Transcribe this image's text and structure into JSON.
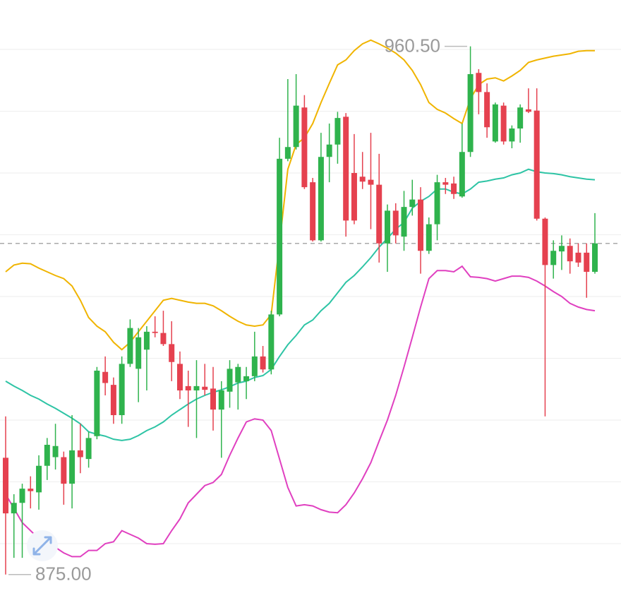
{
  "chart_data": {
    "type": "candlestick",
    "ylim": [
      871.2,
      968
    ],
    "ygrid": [
      880,
      890,
      900,
      910,
      920,
      930,
      940,
      950,
      960
    ],
    "up_color": "#2fb34d",
    "down_color": "#e5414f",
    "open": [
      893.9,
      884.9,
      886.6,
      888.9,
      888.3,
      892.6,
      894.0,
      894.0,
      889.7,
      895.1,
      893.7,
      897.4,
      907.8,
      905.7,
      900.8,
      909.1,
      908.3,
      911.4,
      914.3,
      914.1,
      912.3,
      909.1,
      905.5,
      904.8,
      905.4,
      905.1,
      901.7,
      904.6,
      906.1,
      906.3,
      907.1,
      910.3,
      908.2,
      917.1,
      942.3,
      944.2,
      950.6,
      938.5,
      929.1,
      942.6,
      944.6,
      949.1,
      940.0,
      939.4,
      938.9,
      938.1,
      928.6,
      933.9,
      929.7,
      934.5,
      935.7,
      927.4,
      931.7,
      938.5,
      938.3,
      936.2,
      943.4,
      956.2,
      953.1,
      945.1,
      950.9,
      945.1,
      947.2,
      950.3,
      950.1,
      932.6,
      925.1,
      927.3,
      928.2,
      927.1,
      927.1,
      924.0
    ],
    "high": [
      900.6,
      888.0,
      889.7,
      890.9,
      894.3,
      897.1,
      899.4,
      894.9,
      900.8,
      899.4,
      898.1,
      908.6,
      910.3,
      906.9,
      910.3,
      916.3,
      914.9,
      915.2,
      916.8,
      917.7,
      916.0,
      911.1,
      908.0,
      909.7,
      909.1,
      908.6,
      906.3,
      909.7,
      909.1,
      908.6,
      914.3,
      912.0,
      917.7,
      945.7,
      955.2,
      956.0,
      952.6,
      939.2,
      946.5,
      948.0,
      949.9,
      949.7,
      946.3,
      943.4,
      946.5,
      943.1,
      934.9,
      935.1,
      937.1,
      938.9,
      937.7,
      932.8,
      939.7,
      939.2,
      939.4,
      948.0,
      960.5,
      956.8,
      954.5,
      951.4,
      951.4,
      947.7,
      951.1,
      953.7,
      953.7,
      932.8,
      929.1,
      929.9,
      929.4,
      928.6,
      928.6,
      933.5
    ],
    "low": [
      875.0,
      877.7,
      877.7,
      885.7,
      885.5,
      890.3,
      892.0,
      886.3,
      885.7,
      891.4,
      892.3,
      896.9,
      904.0,
      899.4,
      899.4,
      908.6,
      902.9,
      904.8,
      913.4,
      912.0,
      906.3,
      903.4,
      898.9,
      897.1,
      904.0,
      898.3,
      893.9,
      902.0,
      901.7,
      903.4,
      906.3,
      907.7,
      907.4,
      916.8,
      941.9,
      943.8,
      937.4,
      928.9,
      928.9,
      938.5,
      941.5,
      929.7,
      931.7,
      937.4,
      930.9,
      925.5,
      924.0,
      928.6,
      927.4,
      933.1,
      923.7,
      926.9,
      929.1,
      936.6,
      935.8,
      936.0,
      942.6,
      949.5,
      945.7,
      944.9,
      944.6,
      944.0,
      944.9,
      949.7,
      932.3,
      900.6,
      922.9,
      924.3,
      923.7,
      924.8,
      919.8,
      923.7
    ],
    "close": [
      884.9,
      886.6,
      888.9,
      888.5,
      892.6,
      896.0,
      895.8,
      889.7,
      895.1,
      894.0,
      897.1,
      908.0,
      906.0,
      900.8,
      909.1,
      914.9,
      913.4,
      914.3,
      914.1,
      912.3,
      909.4,
      904.8,
      904.8,
      905.5,
      904.9,
      901.7,
      904.8,
      908.3,
      908.6,
      907.1,
      910.3,
      908.2,
      917.1,
      942.3,
      944.2,
      950.9,
      937.7,
      929.1,
      942.6,
      944.6,
      948.9,
      932.3,
      932.3,
      938.6,
      938.1,
      928.6,
      933.9,
      929.9,
      934.5,
      935.7,
      927.4,
      931.7,
      938.5,
      938.1,
      936.6,
      943.4,
      956.0,
      953.1,
      947.4,
      951.1,
      945.1,
      947.2,
      950.6,
      949.9,
      932.6,
      925.1,
      927.4,
      928.2,
      925.7,
      925.5,
      924.0,
      928.6
    ],
    "bands": [
      {
        "color": "#f0b400",
        "values": [
          924.0,
          925.1,
          925.4,
          925.3,
          924.6,
          924.0,
          923.4,
          922.9,
          921.7,
          919.4,
          916.6,
          915.2,
          914.3,
          912.6,
          911.4,
          912.6,
          914.3,
          916.0,
          917.7,
          919.4,
          919.7,
          919.4,
          919.1,
          918.9,
          918.9,
          918.5,
          917.7,
          916.8,
          916.0,
          915.4,
          915.2,
          915.4,
          917.1,
          928.6,
          940.6,
          944.6,
          945.7,
          948.0,
          951.4,
          954.5,
          957.5,
          958.3,
          959.8,
          960.9,
          961.5,
          960.9,
          960.2,
          959.4,
          958.3,
          956.6,
          954.3,
          951.4,
          950.3,
          949.7,
          948.8,
          948.0,
          952.0,
          954.3,
          955.2,
          955.4,
          954.9,
          955.7,
          956.6,
          957.9,
          958.3,
          958.6,
          958.9,
          959.1,
          959.3,
          959.7,
          959.8,
          959.8
        ]
      },
      {
        "color": "#2ec4a5",
        "values": [
          906.3,
          905.5,
          904.8,
          904.0,
          903.4,
          902.6,
          901.9,
          901.1,
          900.3,
          899.4,
          898.1,
          897.7,
          897.4,
          896.9,
          896.7,
          896.9,
          897.5,
          898.3,
          898.9,
          899.7,
          900.8,
          901.7,
          902.6,
          903.4,
          904.0,
          904.5,
          904.9,
          905.4,
          906.0,
          906.3,
          906.9,
          907.2,
          908.2,
          910.3,
          912.2,
          913.7,
          915.4,
          916.2,
          917.7,
          918.9,
          920.6,
          922.3,
          923.4,
          924.8,
          926.3,
          928.0,
          929.4,
          930.9,
          932.0,
          934.3,
          935.4,
          936.2,
          937.4,
          937.4,
          936.9,
          936.6,
          937.4,
          938.5,
          938.7,
          939.0,
          939.2,
          939.7,
          940.0,
          940.6,
          940.2,
          940.0,
          939.9,
          939.7,
          939.4,
          939.2,
          939.0,
          938.9
        ]
      },
      {
        "color": "#e040c0",
        "values": [
          888.0,
          885.7,
          883.4,
          882.1,
          880.8,
          880.0,
          879.4,
          878.5,
          877.9,
          877.9,
          878.9,
          878.9,
          880.0,
          880.3,
          882.1,
          881.5,
          880.9,
          880.0,
          879.9,
          880.0,
          882.1,
          884.0,
          886.6,
          888.0,
          889.4,
          889.9,
          891.2,
          894.3,
          897.1,
          899.7,
          900.2,
          900.0,
          898.3,
          893.7,
          889.1,
          886.1,
          886.3,
          886.1,
          885.5,
          885.1,
          885.0,
          886.3,
          888.2,
          890.5,
          893.1,
          896.6,
          900.0,
          904.0,
          908.6,
          913.4,
          918.3,
          922.9,
          924.2,
          924.2,
          924.0,
          924.9,
          923.2,
          923.1,
          922.9,
          922.5,
          922.9,
          923.3,
          923.3,
          923.1,
          922.5,
          921.7,
          920.8,
          920.0,
          918.9,
          918.3,
          917.9,
          917.7
        ]
      }
    ],
    "price_line": 928.6,
    "max_label": {
      "value": 960.5,
      "label": "960.50"
    },
    "min_label": {
      "value": 875,
      "label": "875.00"
    }
  }
}
